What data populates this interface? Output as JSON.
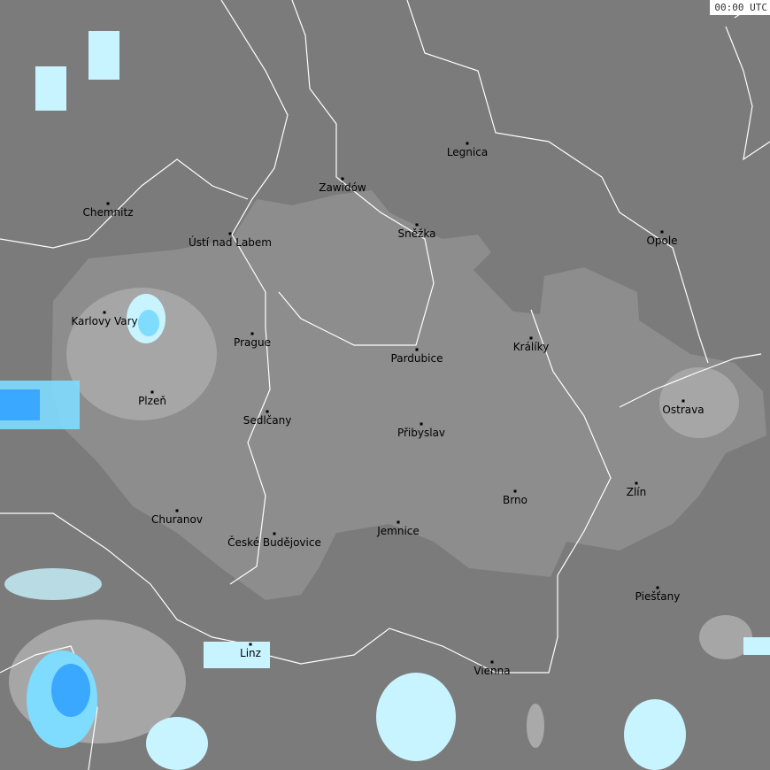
{
  "timestamp": "00:00 UTC",
  "colors": {
    "background": "#7b7b7b",
    "highlight_region": "#8d8d8d",
    "light_precip": "#a9a9a9",
    "borders": "#ffffff",
    "radar_light": "#c8f4ff",
    "radar_medium": "#7fdcff",
    "radar_strong": "#3aa8ff"
  },
  "cities": [
    {
      "name": "Legnica"
    },
    {
      "name": "Zawidów"
    },
    {
      "name": "Chemnitz"
    },
    {
      "name": "Opole"
    },
    {
      "name": "Sněžka"
    },
    {
      "name": "Ústí nad Labem"
    },
    {
      "name": "Karlovy Vary"
    },
    {
      "name": "Prague"
    },
    {
      "name": "Králíky"
    },
    {
      "name": "Pardubice"
    },
    {
      "name": "Plzeň"
    },
    {
      "name": "Ostrava"
    },
    {
      "name": "Sedlčany"
    },
    {
      "name": "Přibyslav"
    },
    {
      "name": "Zlín"
    },
    {
      "name": "Brno"
    },
    {
      "name": "Churanov"
    },
    {
      "name": "Jemnice"
    },
    {
      "name": "České Budějovice"
    },
    {
      "name": "Piešťany"
    },
    {
      "name": "Linz"
    },
    {
      "name": "Vienna"
    }
  ]
}
